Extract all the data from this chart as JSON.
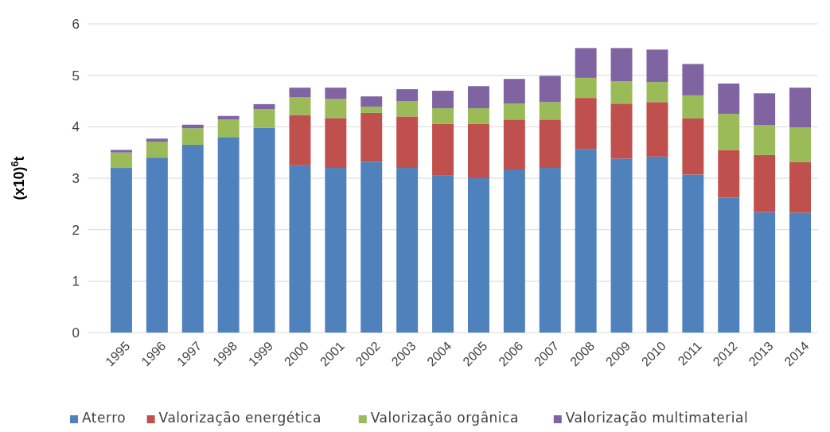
{
  "chart_data": {
    "type": "bar",
    "stacked": true,
    "ylabel": "(x10)$^{6}$t",
    "categories": [
      "1995",
      "1996",
      "1997",
      "1998",
      "1999",
      "2000",
      "2001",
      "2002",
      "2003",
      "2004",
      "2005",
      "2006",
      "2007",
      "2008",
      "2009",
      "2010",
      "2011",
      "2012",
      "2013",
      "2014"
    ],
    "series": [
      {
        "name": "Aterro",
        "color": "#4f81bd",
        "values": [
          3.2,
          3.4,
          3.65,
          3.8,
          3.98,
          3.25,
          3.2,
          3.32,
          3.2,
          3.06,
          3.0,
          3.17,
          3.2,
          3.57,
          3.38,
          3.42,
          3.07,
          2.62,
          2.34,
          2.33
        ]
      },
      {
        "name": "Valorização energética",
        "color": "#c0504d",
        "values": [
          0,
          0,
          0,
          0,
          0,
          0.98,
          0.97,
          0.95,
          1.0,
          1.0,
          1.06,
          0.97,
          0.94,
          0.99,
          1.07,
          1.06,
          1.09,
          0.93,
          1.11,
          0.98
        ]
      },
      {
        "name": "Valorização orgânica",
        "color": "#9bbb59",
        "values": [
          0.3,
          0.31,
          0.32,
          0.34,
          0.36,
          0.34,
          0.37,
          0.12,
          0.3,
          0.3,
          0.3,
          0.31,
          0.34,
          0.39,
          0.43,
          0.39,
          0.45,
          0.7,
          0.58,
          0.68
        ]
      },
      {
        "name": "Valorização multimaterial",
        "color": "#8064a2",
        "values": [
          0.05,
          0.06,
          0.07,
          0.07,
          0.1,
          0.19,
          0.22,
          0.2,
          0.23,
          0.34,
          0.43,
          0.48,
          0.51,
          0.58,
          0.65,
          0.63,
          0.61,
          0.59,
          0.62,
          0.77
        ]
      }
    ],
    "ylim": [
      0,
      6
    ],
    "yticks": [
      0,
      1,
      2,
      3,
      4,
      5,
      6
    ],
    "grid": "y",
    "legend": "bottom"
  }
}
